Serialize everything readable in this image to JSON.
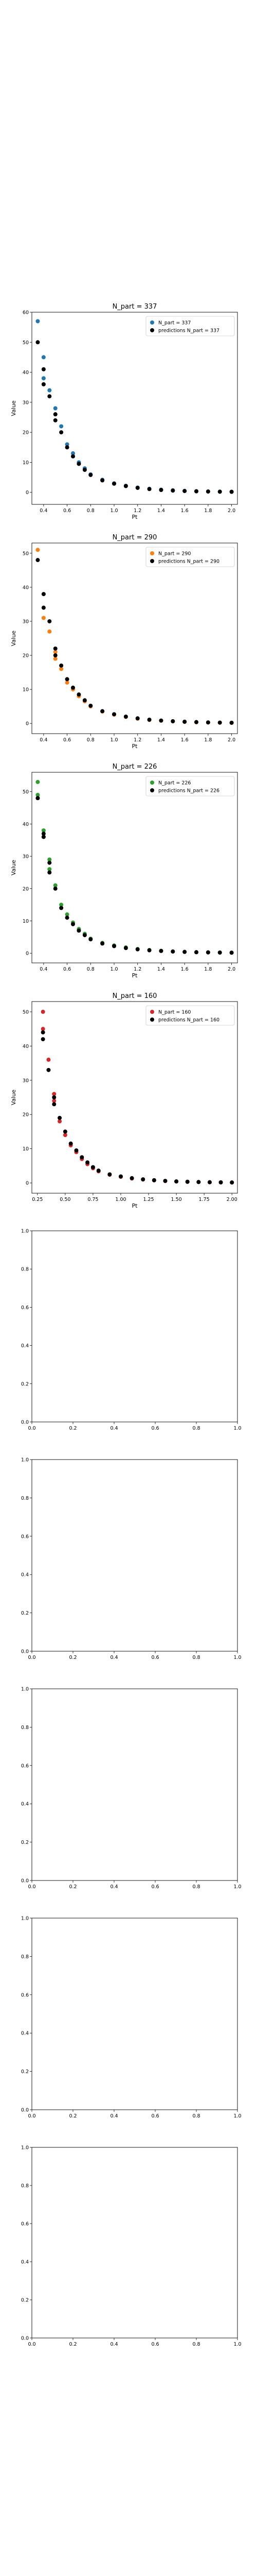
{
  "colors": {
    "blue": "#1f77b4",
    "orange": "#ff7f0e",
    "green": "#2ca02c",
    "red": "#d62728",
    "prediction": "#000000"
  },
  "chart_data": [
    {
      "type": "scatter",
      "title": "N_part = 337",
      "xlabel": "Pt",
      "ylabel": "Value",
      "xlim": [
        0.3,
        2.05
      ],
      "ylim": [
        -4,
        60
      ],
      "xticks": [
        "0.4",
        "0.6",
        "0.8",
        "1.0",
        "1.2",
        "1.4",
        "1.6",
        "1.8",
        "2.0"
      ],
      "yticks": [
        "0",
        "10",
        "20",
        "30",
        "40",
        "50",
        "60"
      ],
      "legend_position": "upper-right",
      "grid": false,
      "series": [
        {
          "name": "N_part = 337",
          "color": "blue",
          "x": [
            0.35,
            0.4,
            0.4,
            0.45,
            0.5,
            0.5,
            0.55,
            0.6,
            0.65,
            0.7,
            0.75,
            0.8,
            0.9,
            1.0,
            1.1,
            1.2,
            1.3,
            1.4,
            1.5,
            1.6,
            1.7,
            1.8,
            1.9,
            2.0
          ],
          "y": [
            57,
            45,
            38,
            34,
            28,
            26,
            22,
            16,
            13,
            10,
            8,
            6,
            4.2,
            3.0,
            2.2,
            1.6,
            1.2,
            0.9,
            0.7,
            0.5,
            0.4,
            0.3,
            0.25,
            0.2
          ]
        },
        {
          "name": "predictions N_part = 337",
          "color": "prediction",
          "x": [
            0.35,
            0.4,
            0.4,
            0.45,
            0.5,
            0.5,
            0.55,
            0.6,
            0.65,
            0.7,
            0.75,
            0.8,
            0.9,
            1.0,
            1.1,
            1.2,
            1.3,
            1.4,
            1.5,
            1.6,
            1.7,
            1.8,
            1.9,
            2.0
          ],
          "y": [
            50,
            41,
            36,
            32,
            26,
            24,
            20,
            15,
            12,
            9.5,
            7.5,
            5.8,
            4.0,
            2.9,
            2.1,
            1.5,
            1.1,
            0.8,
            0.6,
            0.45,
            0.35,
            0.28,
            0.22,
            0.18
          ]
        }
      ]
    },
    {
      "type": "scatter",
      "title": "N_part = 290",
      "xlabel": "Pt",
      "ylabel": "Value",
      "xlim": [
        0.3,
        2.05
      ],
      "ylim": [
        -3,
        53
      ],
      "xticks": [
        "0.4",
        "0.6",
        "0.8",
        "1.0",
        "1.2",
        "1.4",
        "1.6",
        "1.8",
        "2.0"
      ],
      "yticks": [
        "0",
        "10",
        "20",
        "30",
        "40",
        "50"
      ],
      "legend_position": "upper-right",
      "grid": false,
      "series": [
        {
          "name": "N_part = 290",
          "color": "orange",
          "x": [
            0.35,
            0.4,
            0.4,
            0.45,
            0.5,
            0.5,
            0.55,
            0.6,
            0.65,
            0.7,
            0.75,
            0.8,
            0.9,
            1.0,
            1.1,
            1.2,
            1.3,
            1.4,
            1.5,
            1.6,
            1.7,
            1.8,
            1.9,
            2.0
          ],
          "y": [
            51,
            38,
            31,
            27,
            21,
            19,
            16,
            12,
            10,
            8,
            6.5,
            5,
            3.5,
            2.6,
            1.9,
            1.4,
            1.0,
            0.8,
            0.6,
            0.45,
            0.35,
            0.28,
            0.22,
            0.18
          ]
        },
        {
          "name": "predictions N_part = 290",
          "color": "prediction",
          "x": [
            0.35,
            0.4,
            0.4,
            0.45,
            0.5,
            0.5,
            0.55,
            0.6,
            0.65,
            0.7,
            0.75,
            0.8,
            0.9,
            1.0,
            1.1,
            1.2,
            1.3,
            1.4,
            1.5,
            1.6,
            1.7,
            1.8,
            1.9,
            2.0
          ],
          "y": [
            48,
            38,
            34,
            30,
            22,
            20,
            17,
            13,
            10.5,
            8.5,
            6.8,
            5.2,
            3.6,
            2.7,
            2.0,
            1.5,
            1.1,
            0.85,
            0.65,
            0.5,
            0.4,
            0.3,
            0.24,
            0.2
          ]
        }
      ]
    },
    {
      "type": "scatter",
      "title": "N_part = 226",
      "xlabel": "Pt",
      "ylabel": "Value",
      "xlim": [
        0.3,
        2.05
      ],
      "ylim": [
        -3,
        56
      ],
      "xticks": [
        "0.4",
        "0.6",
        "0.8",
        "1.0",
        "1.2",
        "1.4",
        "1.6",
        "1.8",
        "2.0"
      ],
      "yticks": [
        "0",
        "10",
        "20",
        "30",
        "40",
        "50"
      ],
      "legend_position": "upper-right",
      "grid": false,
      "series": [
        {
          "name": "N_part = 226",
          "color": "green",
          "x": [
            0.35,
            0.35,
            0.4,
            0.4,
            0.45,
            0.45,
            0.5,
            0.55,
            0.6,
            0.65,
            0.7,
            0.75,
            0.8,
            0.9,
            1.0,
            1.1,
            1.2,
            1.3,
            1.4,
            1.5,
            1.6,
            1.7,
            1.8,
            1.9,
            2.0
          ],
          "y": [
            53,
            49,
            38,
            36,
            29,
            26,
            21,
            15,
            12,
            9.5,
            7.5,
            6,
            4.5,
            3.2,
            2.4,
            1.8,
            1.3,
            1.0,
            0.75,
            0.55,
            0.42,
            0.33,
            0.26,
            0.21,
            0.17
          ]
        },
        {
          "name": "predictions N_part = 226",
          "color": "prediction",
          "x": [
            0.35,
            0.35,
            0.4,
            0.4,
            0.45,
            0.45,
            0.5,
            0.55,
            0.6,
            0.65,
            0.7,
            0.75,
            0.8,
            0.9,
            1.0,
            1.1,
            1.2,
            1.3,
            1.4,
            1.5,
            1.6,
            1.7,
            1.8,
            1.9,
            2.0
          ],
          "y": [
            48,
            48,
            37,
            36,
            28,
            25,
            20,
            14,
            11,
            9,
            7,
            5.6,
            4.3,
            3.0,
            2.2,
            1.6,
            1.2,
            0.9,
            0.7,
            0.52,
            0.4,
            0.31,
            0.25,
            0.2,
            0.16
          ]
        }
      ]
    },
    {
      "type": "scatter",
      "title": "N_part = 160",
      "xlabel": "Pt",
      "ylabel": "Value",
      "xlim": [
        0.2,
        2.05
      ],
      "ylim": [
        -3,
        53
      ],
      "xticks": [
        "0.25",
        "0.50",
        "0.75",
        "1.00",
        "1.25",
        "1.50",
        "1.75",
        "2.00"
      ],
      "yticks": [
        "0",
        "10",
        "20",
        "30",
        "40",
        "50"
      ],
      "legend_position": "upper-right",
      "grid": false,
      "series": [
        {
          "name": "N_part = 160",
          "color": "red",
          "x": [
            0.3,
            0.3,
            0.35,
            0.4,
            0.4,
            0.45,
            0.5,
            0.55,
            0.6,
            0.65,
            0.7,
            0.75,
            0.8,
            0.9,
            1.0,
            1.1,
            1.2,
            1.3,
            1.4,
            1.5,
            1.6,
            1.7,
            1.8,
            1.9,
            2.0
          ],
          "y": [
            50,
            45,
            36,
            26,
            24,
            18,
            14,
            11,
            9,
            7,
            5.5,
            4.3,
            3.4,
            2.4,
            1.8,
            1.3,
            1.0,
            0.75,
            0.55,
            0.42,
            0.33,
            0.26,
            0.2,
            0.16,
            0.13
          ]
        },
        {
          "name": "predictions N_part = 160",
          "color": "prediction",
          "x": [
            0.3,
            0.3,
            0.35,
            0.4,
            0.4,
            0.45,
            0.5,
            0.55,
            0.6,
            0.65,
            0.7,
            0.75,
            0.8,
            0.9,
            1.0,
            1.1,
            1.2,
            1.3,
            1.4,
            1.5,
            1.6,
            1.7,
            1.8,
            1.9,
            2.0
          ],
          "y": [
            44,
            42,
            33,
            25,
            23,
            19,
            15,
            11.5,
            9.5,
            7.5,
            6,
            4.6,
            3.6,
            2.5,
            1.9,
            1.4,
            1.05,
            0.8,
            0.6,
            0.45,
            0.35,
            0.27,
            0.21,
            0.17,
            0.14
          ]
        }
      ]
    },
    {
      "type": "scatter",
      "title": "",
      "xlabel": "",
      "ylabel": "",
      "xlim": [
        0,
        1
      ],
      "ylim": [
        0,
        1
      ],
      "xticks": [
        "0.0",
        "0.2",
        "0.4",
        "0.6",
        "0.8",
        "1.0"
      ],
      "yticks": [
        "0.0",
        "0.2",
        "0.4",
        "0.6",
        "0.8",
        "1.0"
      ],
      "series": []
    },
    {
      "type": "scatter",
      "title": "",
      "xlabel": "",
      "ylabel": "",
      "xlim": [
        0,
        1
      ],
      "ylim": [
        0,
        1
      ],
      "xticks": [
        "0.0",
        "0.2",
        "0.4",
        "0.6",
        "0.8",
        "1.0"
      ],
      "yticks": [
        "0.0",
        "0.2",
        "0.4",
        "0.6",
        "0.8",
        "1.0"
      ],
      "series": []
    },
    {
      "type": "scatter",
      "title": "",
      "xlabel": "",
      "ylabel": "",
      "xlim": [
        0,
        1
      ],
      "ylim": [
        0,
        1
      ],
      "xticks": [
        "0.0",
        "0.2",
        "0.4",
        "0.6",
        "0.8",
        "1.0"
      ],
      "yticks": [
        "0.0",
        "0.2",
        "0.4",
        "0.6",
        "0.8",
        "1.0"
      ],
      "series": []
    },
    {
      "type": "scatter",
      "title": "",
      "xlabel": "",
      "ylabel": "",
      "xlim": [
        0,
        1
      ],
      "ylim": [
        0,
        1
      ],
      "xticks": [
        "0.0",
        "0.2",
        "0.4",
        "0.6",
        "0.8",
        "1.0"
      ],
      "yticks": [
        "0.0",
        "0.2",
        "0.4",
        "0.6",
        "0.8",
        "1.0"
      ],
      "series": []
    },
    {
      "type": "scatter",
      "title": "",
      "xlabel": "",
      "ylabel": "",
      "xlim": [
        0,
        1
      ],
      "ylim": [
        0,
        1
      ],
      "xticks": [
        "0.0",
        "0.2",
        "0.4",
        "0.6",
        "0.8",
        "1.0"
      ],
      "yticks": [
        "0.0",
        "0.2",
        "0.4",
        "0.6",
        "0.8",
        "1.0"
      ],
      "series": []
    }
  ]
}
